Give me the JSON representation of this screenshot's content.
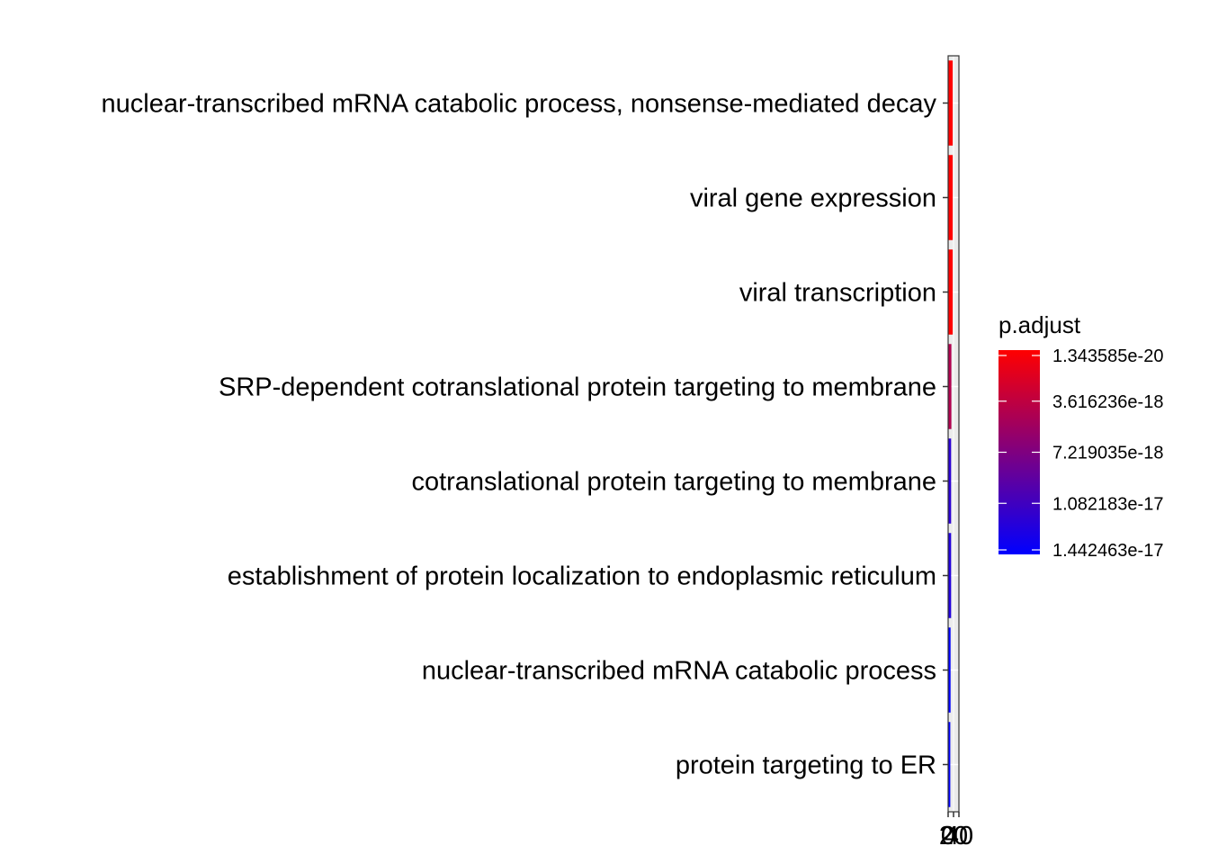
{
  "chart_data": {
    "type": "bar",
    "orientation": "horizontal",
    "categories": [
      "nuclear-transcribed mRNA catabolic process, nonsense-mediated decay",
      "viral gene expression",
      "viral transcription",
      "SRP-dependent cotranslational protein targeting to membrane",
      "cotranslational protein targeting to membrane",
      "establishment of protein localization to endoplasmic reticulum",
      "nuclear-transcribed mRNA catabolic process",
      "protein targeting to ER"
    ],
    "values": [
      17,
      17,
      17,
      12,
      11,
      11,
      9,
      8
    ],
    "p_adjust": [
      1.343585e-20,
      2e-20,
      4e-20,
      4.5e-18,
      1.2e-17,
      1.25e-17,
      1.442463e-17,
      1.442463e-17
    ],
    "xlim": [
      0,
      40
    ],
    "x_ticks": [
      {
        "value": 0,
        "label": "0"
      },
      {
        "value": 20,
        "label": "20"
      },
      {
        "value": 40,
        "label": "40"
      }
    ],
    "xlabel": "",
    "ylabel": "",
    "grid": true,
    "panel_background": "#EBEBEB",
    "legend": {
      "title": "p.adjust",
      "placement": "right",
      "labels": [
        "1.343585e-20",
        "3.616236e-18",
        "7.219035e-18",
        "1.082183e-17",
        "1.442463e-17"
      ],
      "values": [
        1.343585e-20,
        3.616236e-18,
        7.219035e-18,
        1.082183e-17,
        1.442463e-17
      ],
      "low_color": "#FF0000",
      "high_color": "#0000FF"
    }
  }
}
